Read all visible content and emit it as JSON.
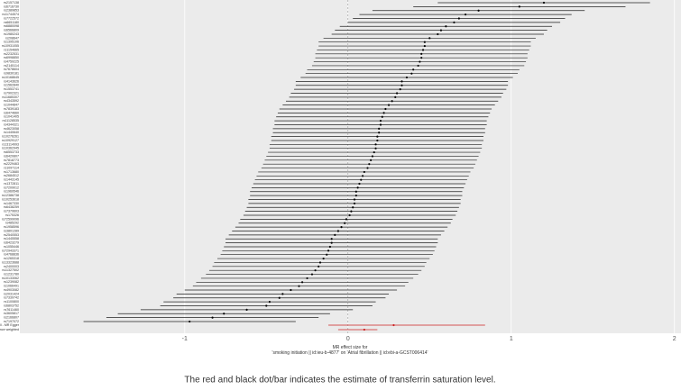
{
  "chart_data": {
    "type": "forest",
    "categories": [
      "rs2157138",
      "rs6716730",
      "rs2389853",
      "rs11744574",
      "rs7722572",
      "rs6651180",
      "rs6880098",
      "rs6566809",
      "rs1980243",
      "rs208647",
      "rs1395106",
      "rs10931055",
      "rs1154665",
      "rs2232531",
      "rs6998850",
      "rs4759225",
      "rs2145114",
      "rs7678604",
      "rs9830181",
      "rs10168645",
      "rs4143626",
      "rs1562840",
      "rs1553741",
      "rs7902321",
      "rs11685307",
      "rs4343592",
      "rs1044847",
      "rs7839183",
      "rs6474660",
      "rs1041405",
      "rs11128535",
      "rs4344321",
      "rs4623058",
      "rs1440640",
      "rs10276261",
      "rs10929127",
      "rs13114993",
      "rs10362945",
      "rs6553733",
      "rs6420807",
      "rs7818773",
      "rs2229463",
      "rs1097114",
      "rs1713680",
      "rs2684512",
      "rs1443145",
      "rs1372811",
      "rs7209012",
      "rs1969546",
      "rs12386738",
      "rs10253618",
      "rs1467330",
      "rs6438259",
      "rs7379603",
      "rs175326",
      "rs72599096",
      "rs485292",
      "rs1958596",
      "rs3801289",
      "rs2540553",
      "rs1445558",
      "rs6423279",
      "rs1055446",
      "rs72943371",
      "rs4768836",
      "rs1265318",
      "rs13323688",
      "rs2400003",
      "rs11327502",
      "rs1231780",
      "rs10133062",
      "rs1239082",
      "rs1066491",
      "rs4903082",
      "rs2031424",
      "rs7339742",
      "rs1100800",
      "rs6803752",
      "rs7611460",
      "rs3605817",
      "rs2166807",
      "rs7197072"
    ],
    "values": [
      1.2,
      1.05,
      0.8,
      0.72,
      0.68,
      0.65,
      0.6,
      0.57,
      0.55,
      0.5,
      0.47,
      0.47,
      0.46,
      0.45,
      0.45,
      0.44,
      0.43,
      0.4,
      0.39,
      0.36,
      0.33,
      0.33,
      0.32,
      0.3,
      0.29,
      0.27,
      0.25,
      0.23,
      0.22,
      0.21,
      0.2,
      0.2,
      0.19,
      0.19,
      0.18,
      0.18,
      0.17,
      0.17,
      0.16,
      0.15,
      0.14,
      0.13,
      0.12,
      0.1,
      0.09,
      0.08,
      0.07,
      0.06,
      0.05,
      0.05,
      0.04,
      0.04,
      0.03,
      0.02,
      0.01,
      -0.01,
      -0.02,
      -0.04,
      -0.06,
      -0.08,
      -0.1,
      -0.1,
      -0.11,
      -0.12,
      -0.13,
      -0.15,
      -0.17,
      -0.18,
      -0.2,
      -0.22,
      -0.25,
      -0.28,
      -0.3,
      -0.35,
      -0.4,
      -0.42,
      -0.48,
      -0.5,
      -0.62,
      -0.76,
      -0.83,
      -0.97
    ],
    "lower": [
      0.55,
      0.4,
      0.15,
      0.07,
      0.03,
      0.0,
      -0.05,
      -0.08,
      -0.1,
      -0.15,
      -0.18,
      -0.18,
      -0.19,
      -0.2,
      -0.2,
      -0.21,
      -0.22,
      -0.25,
      -0.26,
      -0.29,
      -0.32,
      -0.32,
      -0.33,
      -0.35,
      -0.36,
      -0.38,
      -0.4,
      -0.42,
      -0.43,
      -0.44,
      -0.45,
      -0.45,
      -0.46,
      -0.46,
      -0.47,
      -0.47,
      -0.48,
      -0.48,
      -0.49,
      -0.5,
      -0.51,
      -0.52,
      -0.53,
      -0.55,
      -0.56,
      -0.57,
      -0.58,
      -0.59,
      -0.6,
      -0.6,
      -0.61,
      -0.61,
      -0.62,
      -0.63,
      -0.64,
      -0.66,
      -0.67,
      -0.69,
      -0.71,
      -0.73,
      -0.75,
      -0.75,
      -0.76,
      -0.77,
      -0.78,
      -0.8,
      -0.82,
      -0.83,
      -0.85,
      -0.87,
      -0.9,
      -0.93,
      -0.95,
      -1.0,
      -1.05,
      -1.07,
      -1.13,
      -1.15,
      -1.27,
      -1.41,
      -1.48,
      -1.62
    ],
    "upper": [
      1.85,
      1.7,
      1.45,
      1.37,
      1.33,
      1.3,
      1.25,
      1.22,
      1.2,
      1.15,
      1.12,
      1.12,
      1.11,
      1.1,
      1.1,
      1.09,
      1.08,
      1.05,
      1.04,
      1.01,
      0.98,
      0.98,
      0.97,
      0.95,
      0.94,
      0.92,
      0.9,
      0.88,
      0.87,
      0.86,
      0.85,
      0.85,
      0.84,
      0.84,
      0.83,
      0.83,
      0.82,
      0.82,
      0.81,
      0.8,
      0.79,
      0.78,
      0.77,
      0.75,
      0.74,
      0.73,
      0.72,
      0.71,
      0.7,
      0.7,
      0.69,
      0.69,
      0.68,
      0.67,
      0.66,
      0.64,
      0.63,
      0.61,
      0.59,
      0.57,
      0.55,
      0.55,
      0.54,
      0.53,
      0.52,
      0.5,
      0.48,
      0.47,
      0.45,
      0.43,
      0.4,
      0.37,
      0.35,
      0.3,
      0.25,
      0.23,
      0.17,
      0.15,
      0.03,
      -0.11,
      -0.18,
      -0.32
    ],
    "color": "#222222",
    "summary": {
      "categories": [
        "All - MR Egger",
        "All - Inverse variance weighted"
      ],
      "values": [
        0.28,
        0.1
      ],
      "lower": [
        -0.12,
        -0.06
      ],
      "upper": [
        0.84,
        0.18
      ],
      "color": "#cc2222"
    },
    "xlim": [
      -2.01,
      2.04
    ],
    "xticks": [
      -1,
      0,
      1,
      2
    ],
    "grid": true,
    "xlabel": "MR effect size for\n'smoking initiation || id:ieu-b-4877' on 'Atrial fibrillation || id:ebi-a-GCST006414'",
    "caption": "The red and black dot/bar indicates the estimate of transferrin saturation level."
  }
}
